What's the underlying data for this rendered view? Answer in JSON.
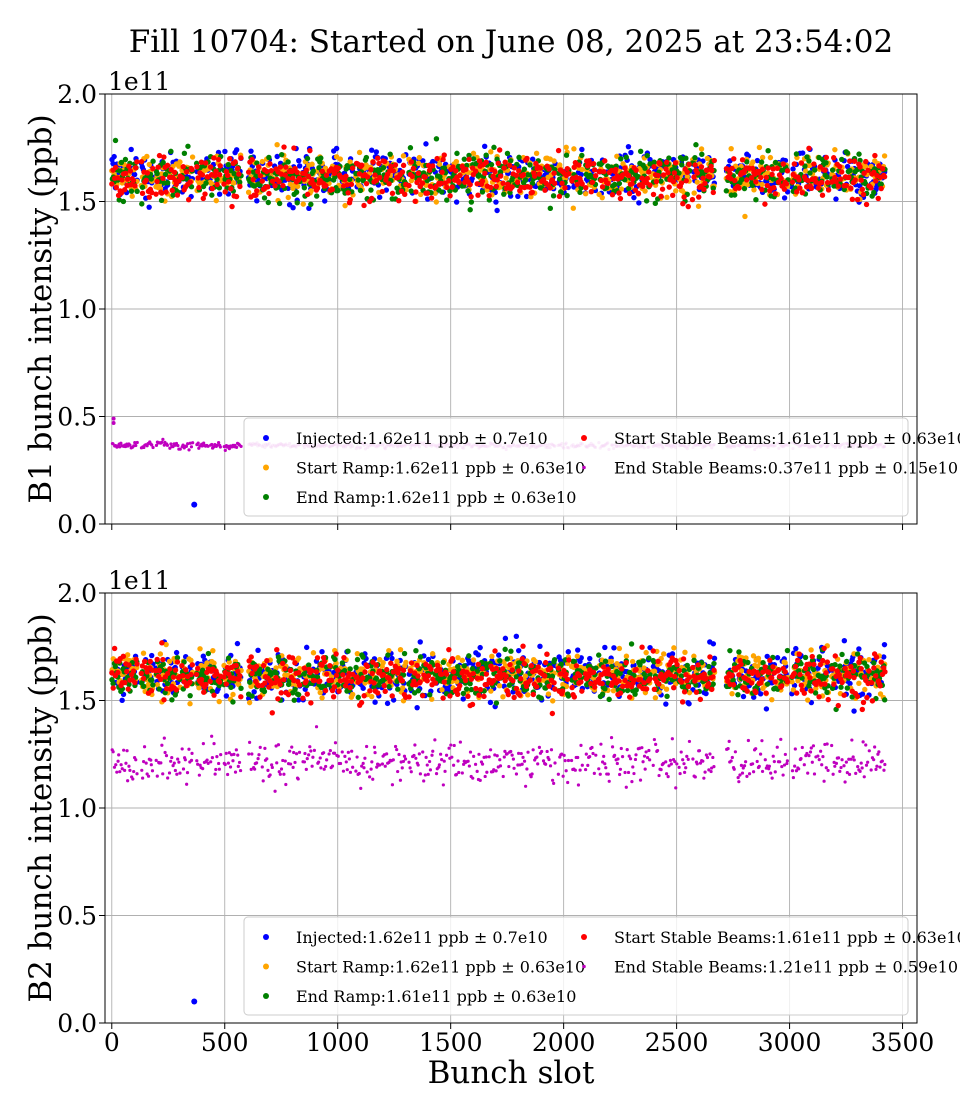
{
  "chart_data": {
    "type": "scatter",
    "title": "Fill 10704: Started on June 08, 2025 at 23:54:02",
    "xlabel": "Bunch slot",
    "xlim": [
      -30,
      3564
    ],
    "x_ticks": [
      "0",
      "500",
      "1000",
      "1500",
      "2000",
      "2500",
      "3000",
      "3500"
    ],
    "x_tick_values": [
      0,
      500,
      1000,
      1500,
      2000,
      2500,
      3000,
      3500
    ],
    "grid": true,
    "legend_placement": "lower-right",
    "panels": [
      {
        "ylabel": "B1 bunch intensity (ppb)",
        "y_multiplier": "1e11",
        "ylim": [
          0.0,
          2.0
        ],
        "y_ticks": [
          "0.0",
          "0.5",
          "1.0",
          "1.5",
          "2.0"
        ],
        "y_tick_values": [
          0.0,
          0.5,
          1.0,
          1.5,
          2.0
        ],
        "show_xtick_labels": false,
        "series": [
          {
            "name": "Injected:1.62e11 ppb ± 0.7e10",
            "color": "#0000ff",
            "marker": "dot",
            "mean": 1.62,
            "spread": 0.07
          },
          {
            "name": "Start Ramp:1.62e11 ppb ± 0.63e10",
            "color": "#ffa500",
            "marker": "dot",
            "mean": 1.62,
            "spread": 0.063
          },
          {
            "name": "End Ramp:1.62e11 ppb ± 0.63e10",
            "color": "#008000",
            "marker": "dot",
            "mean": 1.62,
            "spread": 0.063
          },
          {
            "name": "Start Stable Beams:1.61e11 ppb ± 0.63e10",
            "color": "#ff0000",
            "marker": "dot",
            "mean": 1.61,
            "spread": 0.063
          },
          {
            "name": "End Stable Beams:0.37e11 ppb ± 0.15e10",
            "color": "#bf00bf",
            "marker": "small",
            "mean": 0.37,
            "spread": 0.015
          }
        ],
        "outliers": [
          {
            "series": 0,
            "x": 365,
            "y": 0.09
          },
          {
            "series": 4,
            "x": 8,
            "y": 0.47
          },
          {
            "series": 4,
            "x": 8,
            "y": 0.49
          }
        ]
      },
      {
        "ylabel": "B2 bunch intensity (ppb)",
        "y_multiplier": "1e11",
        "ylim": [
          0.0,
          2.0
        ],
        "y_ticks": [
          "0.0",
          "0.5",
          "1.0",
          "1.5",
          "2.0"
        ],
        "y_tick_values": [
          0.0,
          0.5,
          1.0,
          1.5,
          2.0
        ],
        "show_xtick_labels": true,
        "series": [
          {
            "name": "Injected:1.62e11 ppb ± 0.7e10",
            "color": "#0000ff",
            "marker": "dot",
            "mean": 1.62,
            "spread": 0.07
          },
          {
            "name": "Start Ramp:1.62e11 ppb ± 0.63e10",
            "color": "#ffa500",
            "marker": "dot",
            "mean": 1.62,
            "spread": 0.063
          },
          {
            "name": "End Ramp:1.61e11 ppb ± 0.63e10",
            "color": "#008000",
            "marker": "dot",
            "mean": 1.61,
            "spread": 0.063
          },
          {
            "name": "Start Stable Beams:1.61e11 ppb ± 0.63e10",
            "color": "#ff0000",
            "marker": "dot",
            "mean": 1.61,
            "spread": 0.063
          },
          {
            "name": "End Stable Beams:1.21e11 ppb ± 0.59e10",
            "color": "#bf00bf",
            "marker": "small",
            "mean": 1.21,
            "spread": 0.059
          }
        ],
        "outliers": [
          {
            "series": 0,
            "x": 365,
            "y": 0.1
          }
        ]
      }
    ],
    "filled_slot_ranges": [
      [
        0,
        50
      ],
      [
        55,
        110
      ],
      [
        130,
        180
      ],
      [
        195,
        245
      ],
      [
        255,
        300
      ],
      [
        310,
        355
      ],
      [
        375,
        425
      ],
      [
        435,
        480
      ],
      [
        495,
        570
      ],
      [
        605,
        655
      ],
      [
        665,
        710
      ],
      [
        720,
        770
      ],
      [
        780,
        830
      ],
      [
        845,
        895
      ],
      [
        905,
        950
      ],
      [
        960,
        1010
      ],
      [
        1020,
        1065
      ],
      [
        1080,
        1130
      ],
      [
        1140,
        1185
      ],
      [
        1195,
        1245
      ],
      [
        1255,
        1300
      ],
      [
        1315,
        1365
      ],
      [
        1375,
        1420
      ],
      [
        1430,
        1480
      ],
      [
        1490,
        1540
      ],
      [
        1550,
        1600
      ],
      [
        1610,
        1660
      ],
      [
        1670,
        1720
      ],
      [
        1730,
        1780
      ],
      [
        1790,
        1840
      ],
      [
        1850,
        1900
      ],
      [
        1910,
        1960
      ],
      [
        1975,
        2020
      ],
      [
        2035,
        2080
      ],
      [
        2095,
        2140
      ],
      [
        2155,
        2200
      ],
      [
        2210,
        2260
      ],
      [
        2270,
        2320
      ],
      [
        2330,
        2380
      ],
      [
        2395,
        2440
      ],
      [
        2450,
        2500
      ],
      [
        2510,
        2555
      ],
      [
        2570,
        2610
      ],
      [
        2615,
        2665
      ],
      [
        2720,
        2760
      ],
      [
        2770,
        2820
      ],
      [
        2830,
        2880
      ],
      [
        2890,
        2935
      ],
      [
        2945,
        2990
      ],
      [
        3010,
        3055
      ],
      [
        3065,
        3115
      ],
      [
        3125,
        3170
      ],
      [
        3185,
        3230
      ],
      [
        3240,
        3290
      ],
      [
        3300,
        3350
      ],
      [
        3360,
        3420
      ]
    ]
  }
}
